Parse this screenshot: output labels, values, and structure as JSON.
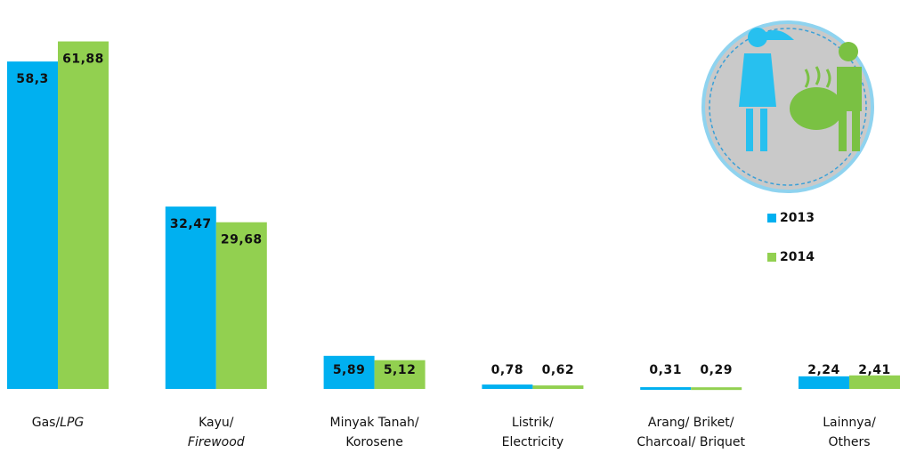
{
  "chart_data": {
    "type": "bar",
    "categories": [
      [
        "Gas/",
        "LPG"
      ],
      [
        "Kayu/",
        "Firewood"
      ],
      [
        "Minyak Tanah/",
        "Korosene"
      ],
      [
        "Listrik/",
        "Electricity"
      ],
      [
        "Arang/ Briket/",
        "Charcoal/ Briquet"
      ],
      [
        "Lainnya/",
        "Others"
      ]
    ],
    "series": [
      {
        "name": "2013",
        "color": "#00b0f0",
        "values": [
          58.3,
          32.47,
          5.89,
          0.78,
          0.31,
          2.24
        ],
        "value_labels": [
          "58,3",
          "32,47",
          "5,89",
          "0,78",
          "0,31",
          "2,24"
        ]
      },
      {
        "name": "2014",
        "color": "#92d050",
        "values": [
          61.88,
          29.68,
          5.12,
          0.62,
          0.29,
          2.41
        ],
        "value_labels": [
          "61,88",
          "29,68",
          "5,12",
          "0,62",
          "0,29",
          "2,41"
        ]
      }
    ],
    "ylim": [
      0,
      70
    ],
    "grid": false,
    "legend": "right"
  }
}
